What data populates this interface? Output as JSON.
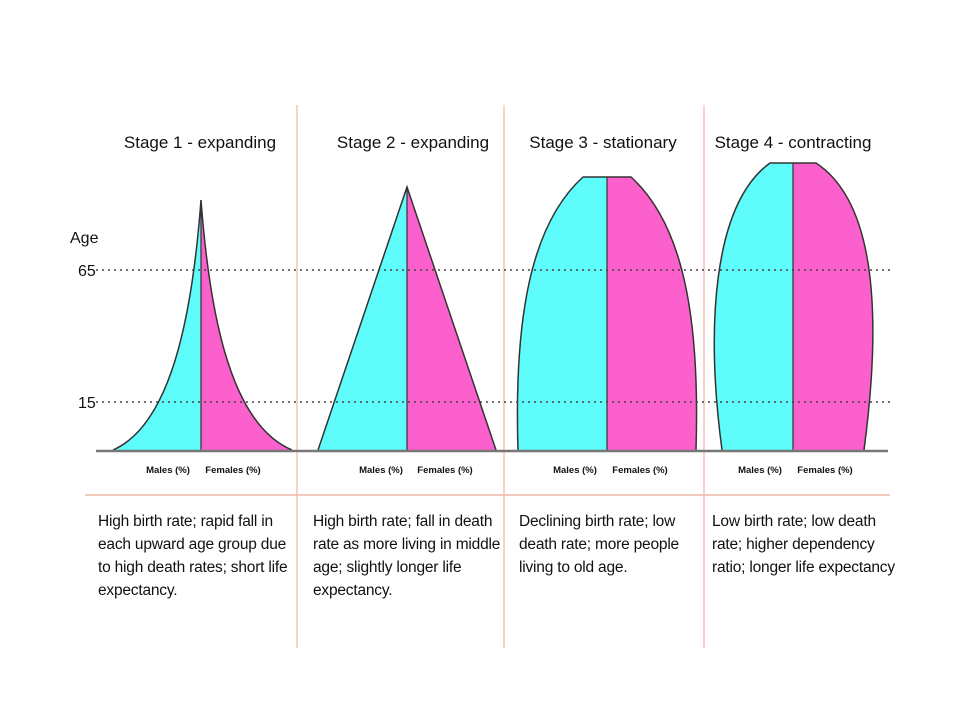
{
  "axis": {
    "label": "Age",
    "ticks": [
      "65",
      "15"
    ]
  },
  "stages": [
    {
      "title": "Stage 1 - expanding",
      "males_label": "Males (%)",
      "females_label": "Females (%)",
      "description": "High birth rate; rapid fall in each upward age group due to high death rates; short life expectancy."
    },
    {
      "title": "Stage 2 - expanding",
      "males_label": "Males (%)",
      "females_label": "Females (%)",
      "description": "High birth rate; fall in death rate as more living in middle age; slightly longer life expectancy."
    },
    {
      "title": "Stage 3 - stationary",
      "males_label": "Males (%)",
      "females_label": "Females (%)",
      "description": "Declining birth rate; low death rate; more people living to old age."
    },
    {
      "title": "Stage 4 - contracting",
      "males_label": "Males (%)",
      "females_label": "Females (%)",
      "description": "Low birth rate; low death rate; higher dependency ratio; longer life expectancy"
    }
  ],
  "colors": {
    "males": "#5ffcfc",
    "females": "#fc60cc",
    "divider": "#f3b8a4"
  }
}
